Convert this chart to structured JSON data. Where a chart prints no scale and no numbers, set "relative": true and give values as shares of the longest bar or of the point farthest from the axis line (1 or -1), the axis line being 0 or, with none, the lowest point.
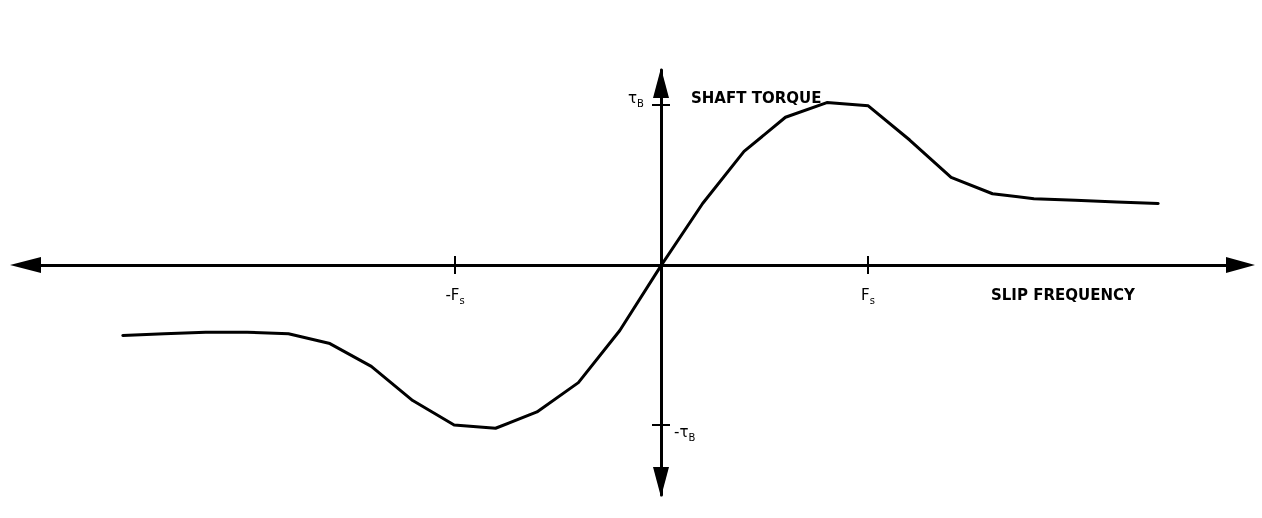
{
  "chart_data": {
    "type": "line",
    "relative": true,
    "xlabel": "SLIP FREQUENCY",
    "ylabel": "SHAFT TORQUE",
    "annotations": [
      "-F$_{s}$",
      "F$_{s}$",
      "τ$_{B}$",
      "-τ$_{B}$"
    ],
    "color": "#000000",
    "categories": [
      null,
      null,
      null,
      null,
      null,
      null,
      null,
      null,
      null,
      null,
      null,
      null,
      null,
      null,
      null,
      null,
      null,
      null,
      null,
      null,
      null,
      null,
      null,
      null,
      null,
      null,
      null,
      null,
      null,
      null
    ],
    "values": [
      null,
      null,
      -0.43,
      -0.42,
      -0.41,
      -0.41,
      -0.42,
      -0.48,
      -0.62,
      -0.83,
      -0.98,
      -1,
      -0.9,
      -0.72,
      -0.4,
      0,
      0.38,
      0.7,
      0.91,
      1,
      0.98,
      0.77,
      0.54,
      0.44,
      0.41,
      0.4,
      0.39,
      0.38,
      null,
      null
    ]
  }
}
